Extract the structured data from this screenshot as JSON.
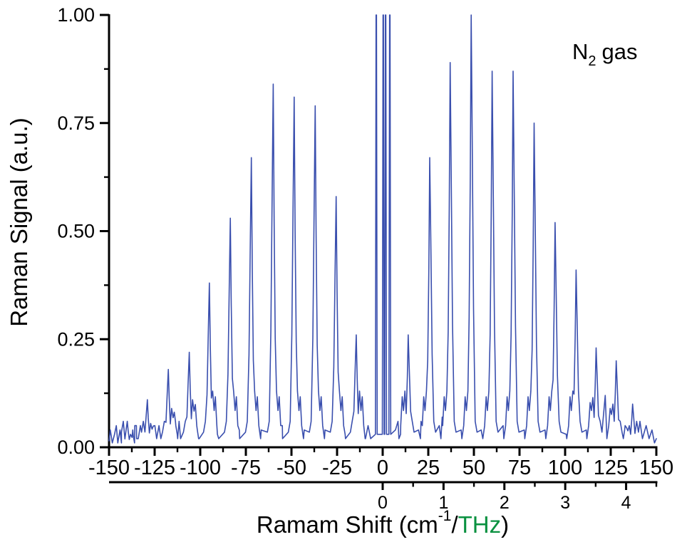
{
  "figure": {
    "background": "#ffffff",
    "annotation": {
      "main": "N",
      "sub": "2",
      "rest": "gas",
      "full_text": "N2 gas"
    }
  },
  "colors": {
    "axis": "#000000",
    "text": "#000000",
    "trace_blue": "#3a4fae",
    "thz_green": "#0a9140"
  },
  "chart_data": {
    "type": "line",
    "title": "",
    "ylabel": "Raman Signal (a.u.)",
    "xlabel": {
      "prefix": "Ramam Shift (cm",
      "sup": "-1",
      "slash": "/",
      "unit2": "THz",
      "suffix": ")"
    },
    "xlim": [
      -150,
      150
    ],
    "ylim": [
      0,
      1
    ],
    "grid": false,
    "legend": null,
    "annotation": "N2 gas",
    "x_axis": {
      "unit": "cm-1",
      "ticks_major": [
        -150,
        -125,
        -100,
        -75,
        -50,
        -25,
        0,
        25,
        50,
        75,
        100,
        125,
        150
      ],
      "labels": [
        "-150",
        "-125",
        "-100",
        "-75",
        "-50",
        "-25",
        "0",
        "25",
        "50",
        "75",
        "100",
        "125",
        "150"
      ],
      "minor_step": 12.5
    },
    "y_axis": {
      "ticks_major": [
        0,
        0.25,
        0.5,
        0.75,
        1
      ],
      "labels": [
        "0.00",
        "0.25",
        "0.50",
        "0.75",
        "1.00"
      ],
      "minor_step": 0.125
    },
    "thz_axis": {
      "unit": "THz",
      "cm_per_thz": 33.356,
      "ticks_major": [
        0,
        1,
        2,
        3,
        4
      ],
      "labels": [
        "0",
        "1",
        "2",
        "3",
        "4"
      ],
      "minor_step": 0.5,
      "tick_range": [
        0,
        4.5
      ],
      "label_color": "#0a9140"
    },
    "series": [
      {
        "name": "N2 rotational Raman spectrum",
        "color": "#3a4fae",
        "peaks": [
          [
            -140,
            0.06
          ],
          [
            -129,
            0.11
          ],
          [
            -117.5,
            0.18
          ],
          [
            -106,
            0.22
          ],
          [
            -95,
            0.38
          ],
          [
            -83.5,
            0.53
          ],
          [
            -72,
            0.67
          ],
          [
            -60,
            0.84
          ],
          [
            -48.5,
            0.81
          ],
          [
            -37,
            0.79
          ],
          [
            -25.5,
            0.58
          ],
          [
            -14.5,
            0.26
          ],
          [
            14,
            0.26
          ],
          [
            25.8,
            0.67
          ],
          [
            37,
            0.89
          ],
          [
            48.5,
            1.0
          ],
          [
            60,
            0.87
          ],
          [
            71.5,
            0.87
          ],
          [
            83,
            0.75
          ],
          [
            94.5,
            0.52
          ],
          [
            106,
            0.41
          ],
          [
            117,
            0.23
          ],
          [
            128,
            0.2
          ],
          [
            137,
            0.1
          ]
        ],
        "clipped_lines": {
          "x": [
            -3.5,
            0.3,
            1.6,
            3.9
          ],
          "top": 1.0
        },
        "baseline_noise": [
          [
            -149.3,
            0.04
          ],
          [
            -148.2,
            0.01
          ],
          [
            -147,
            0.03
          ],
          [
            -146,
            0.05
          ],
          [
            -145.2,
            0.01
          ],
          [
            -144,
            0.04
          ],
          [
            -143.2,
            0.01
          ],
          [
            -137,
            0.04
          ],
          [
            -136,
            0.01
          ],
          [
            -135,
            0.05
          ],
          [
            -134,
            0.02
          ],
          [
            -132.8,
            0.05
          ],
          [
            -124.2,
            0.03
          ],
          [
            -122.6,
            0.05
          ],
          [
            -121.6,
            0.02
          ],
          [
            -113.6,
            0.06
          ],
          [
            -112.6,
            0.03
          ],
          [
            -111.6,
            0.06
          ],
          [
            -110.8,
            0.02
          ],
          [
            -101.6,
            0.04
          ],
          [
            -100.6,
            0.02
          ],
          [
            -90.6,
            0.03
          ],
          [
            -78.6,
            0.04
          ],
          [
            -66.6,
            0.04
          ],
          [
            -55,
            0.05
          ],
          [
            -43,
            0.04
          ],
          [
            -31.6,
            0.04
          ],
          [
            -20.6,
            0.03
          ],
          [
            -9.6,
            0.02
          ],
          [
            -8,
            0.05
          ],
          [
            -6.6,
            0.02
          ],
          [
            7,
            0.04
          ],
          [
            8.4,
            0.06
          ],
          [
            9.8,
            0.03
          ],
          [
            19.6,
            0.04
          ],
          [
            21,
            0.06
          ],
          [
            31,
            0.05
          ],
          [
            32.6,
            0.07
          ],
          [
            43,
            0.04
          ],
          [
            54,
            0.04
          ],
          [
            66,
            0.05
          ],
          [
            77.6,
            0.04
          ],
          [
            89,
            0.04
          ],
          [
            100.6,
            0.03
          ],
          [
            111.6,
            0.04
          ],
          [
            122,
            0.12
          ],
          [
            123.2,
            0.03
          ],
          [
            132.6,
            0.04
          ],
          [
            141,
            0.06
          ],
          [
            142.4,
            0.02
          ],
          [
            144.4,
            0.05
          ],
          [
            146,
            0.02
          ],
          [
            147.6,
            0.04
          ],
          [
            149,
            0.01
          ]
        ]
      }
    ]
  }
}
